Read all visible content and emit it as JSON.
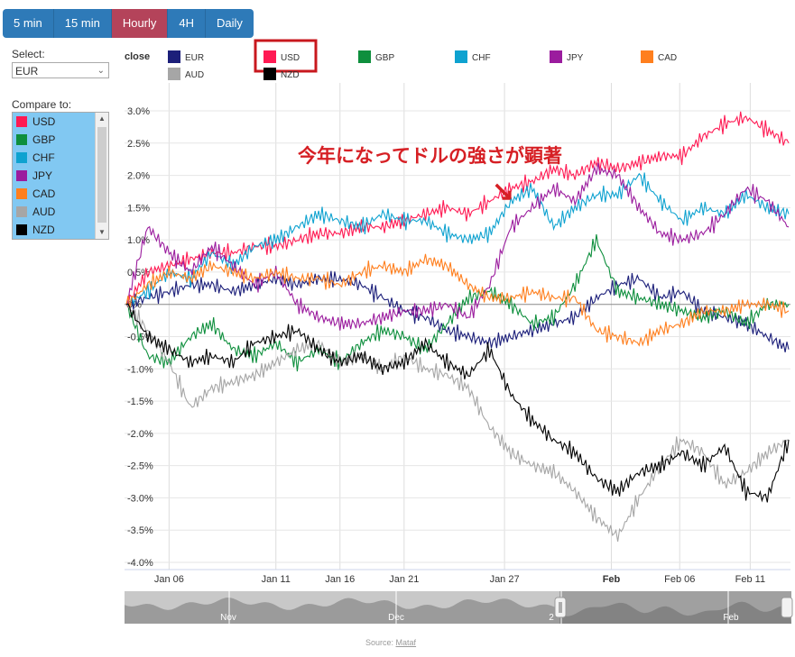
{
  "tabs": [
    {
      "label": "5 min",
      "active": false
    },
    {
      "label": "15 min",
      "active": false
    },
    {
      "label": "Hourly",
      "active": true
    },
    {
      "label": "4H",
      "active": false
    },
    {
      "label": "Daily",
      "active": false
    }
  ],
  "select_label": "Select:",
  "select_value": "EUR",
  "compare_label": "Compare to:",
  "compare_items": [
    {
      "label": "USD",
      "color": "#ff1a53"
    },
    {
      "label": "GBP",
      "color": "#0e8f3d"
    },
    {
      "label": "CHF",
      "color": "#0ea2d0"
    },
    {
      "label": "JPY",
      "color": "#9b1c9e"
    },
    {
      "label": "CAD",
      "color": "#ff7f1e"
    },
    {
      "label": "AUD",
      "color": "#a6a6a6"
    },
    {
      "label": "NZD",
      "color": "#000000"
    }
  ],
  "annotation": "今年になってドルの強さが顕著",
  "annotation_arrow": "↘",
  "source_label": "Source:",
  "source_link": "Mataf",
  "navigator_labels": [
    "Nov",
    "Dec",
    "2",
    "Feb"
  ],
  "chart_data": {
    "type": "line",
    "legend_title": "close",
    "highlighted_series": "USD",
    "ylim": [
      -4.0,
      3.0
    ],
    "yticks": [
      3.0,
      2.5,
      2.0,
      1.5,
      1.0,
      0.5,
      0,
      -0.5,
      -1.0,
      -1.5,
      -2.0,
      -2.5,
      -3.0,
      -3.5,
      -4.0
    ],
    "ytick_labels": [
      "3.0%",
      "2.5%",
      "2.0%",
      "1.5%",
      "1.0%",
      "0.5%",
      "0%",
      "-0.5%",
      "-1.0%",
      "-1.5%",
      "-2.0%",
      "-2.5%",
      "-3.0%",
      "-3.5%",
      "-4.0%"
    ],
    "xticks": [
      {
        "day": 2,
        "label": "Jan 06",
        "bold": false
      },
      {
        "day": 7,
        "label": "Jan 11",
        "bold": false
      },
      {
        "day": 10,
        "label": "Jan 16",
        "bold": false
      },
      {
        "day": 13,
        "label": "Jan 21",
        "bold": false
      },
      {
        "day": 17.7,
        "label": "Jan 27",
        "bold": false
      },
      {
        "day": 22.7,
        "label": "Feb",
        "bold": true
      },
      {
        "day": 25.9,
        "label": "Feb 06",
        "bold": false
      },
      {
        "day": 29.2,
        "label": "Feb 11",
        "bold": false
      }
    ],
    "xlim": [
      0,
      31
    ],
    "x": [
      0,
      1,
      2,
      3,
      4,
      5,
      6,
      7,
      8,
      9,
      10,
      11,
      12,
      13,
      14,
      15,
      16,
      17,
      18,
      19,
      20,
      21,
      22,
      23,
      24,
      25,
      26,
      27,
      28,
      29,
      30,
      31
    ],
    "series": [
      {
        "name": "EUR",
        "color": "#1c1f7a",
        "values": [
          0,
          0.1,
          0.2,
          0.3,
          0.3,
          0.2,
          0.3,
          0.4,
          0.3,
          0.4,
          0.4,
          0.3,
          0.1,
          -0.1,
          -0.2,
          -0.4,
          -0.5,
          -0.6,
          -0.5,
          -0.4,
          -0.3,
          -0.2,
          0.1,
          0.3,
          0.4,
          0.1,
          0.2,
          -0.1,
          -0.2,
          -0.3,
          -0.5,
          -0.7
        ]
      },
      {
        "name": "USD",
        "color": "#ff1a53",
        "values": [
          0,
          0.5,
          0.6,
          0.7,
          0.8,
          0.8,
          0.9,
          0.9,
          1.0,
          1.1,
          1.1,
          1.2,
          1.2,
          1.3,
          1.4,
          1.5,
          1.4,
          1.6,
          1.8,
          1.9,
          2.1,
          2.0,
          2.2,
          2.1,
          2.2,
          2.3,
          2.3,
          2.6,
          2.8,
          2.9,
          2.7,
          2.5
        ]
      },
      {
        "name": "GBP",
        "color": "#0e8f3d",
        "values": [
          0,
          -0.8,
          -0.9,
          -0.5,
          -0.3,
          -0.7,
          -0.8,
          -0.6,
          -0.9,
          -0.7,
          -0.9,
          -0.6,
          -0.4,
          -0.5,
          -0.7,
          -0.3,
          0.1,
          0.2,
          0.0,
          -0.3,
          -0.2,
          0.3,
          1.0,
          0.2,
          0.1,
          0.0,
          -0.1,
          -0.2,
          -0.1,
          -0.3,
          0.0,
          0.0
        ]
      },
      {
        "name": "CHF",
        "color": "#0ea2d0",
        "values": [
          0,
          0.2,
          0.5,
          0.4,
          0.8,
          0.6,
          0.9,
          1.0,
          1.2,
          1.4,
          1.3,
          1.2,
          1.4,
          1.3,
          1.3,
          1.1,
          1.0,
          1.1,
          1.6,
          1.8,
          1.2,
          1.5,
          1.7,
          1.7,
          2.0,
          1.6,
          1.3,
          1.5,
          1.4,
          1.7,
          1.5,
          1.4
        ]
      },
      {
        "name": "JPY",
        "color": "#9b1c9e",
        "values": [
          0,
          1.2,
          0.8,
          0.5,
          0.9,
          0.6,
          0.3,
          0.5,
          0.0,
          -0.2,
          -0.3,
          -0.3,
          -0.2,
          -0.1,
          -0.1,
          0.0,
          -0.2,
          0.3,
          1.2,
          1.5,
          1.8,
          1.6,
          2.1,
          2.0,
          1.5,
          1.1,
          1.0,
          1.1,
          1.4,
          1.8,
          1.6,
          1.2
        ]
      },
      {
        "name": "CAD",
        "color": "#ff7f1e",
        "values": [
          0,
          0.3,
          0.5,
          0.4,
          0.6,
          0.5,
          0.4,
          0.5,
          0.4,
          0.4,
          0.3,
          0.5,
          0.6,
          0.5,
          0.7,
          0.6,
          0.3,
          0.1,
          0.1,
          0.2,
          0.1,
          0.1,
          -0.4,
          -0.5,
          -0.6,
          -0.4,
          -0.3,
          -0.1,
          -0.1,
          0.0,
          0.0,
          -0.1
        ]
      },
      {
        "name": "AUD",
        "color": "#a6a6a6",
        "values": [
          0,
          -0.4,
          -0.9,
          -1.6,
          -1.3,
          -1.2,
          -1.1,
          -0.9,
          -0.7,
          -0.6,
          -0.9,
          -0.8,
          -1.0,
          -0.8,
          -1.0,
          -1.1,
          -1.3,
          -1.9,
          -2.3,
          -2.5,
          -2.6,
          -2.9,
          -3.3,
          -3.6,
          -3.0,
          -2.5,
          -2.1,
          -2.3,
          -2.8,
          -2.6,
          -2.3,
          -2.1
        ]
      },
      {
        "name": "NZD",
        "color": "#000000",
        "values": [
          0,
          -0.5,
          -0.7,
          -0.9,
          -0.8,
          -0.9,
          -0.6,
          -0.5,
          -0.4,
          -0.7,
          -0.9,
          -0.8,
          -1.0,
          -0.9,
          -0.6,
          -0.9,
          -1.1,
          -0.7,
          -1.4,
          -1.8,
          -2.1,
          -2.3,
          -2.7,
          -2.9,
          -2.6,
          -2.5,
          -2.3,
          -2.5,
          -2.2,
          -2.9,
          -3.0,
          -2.1
        ]
      }
    ]
  }
}
